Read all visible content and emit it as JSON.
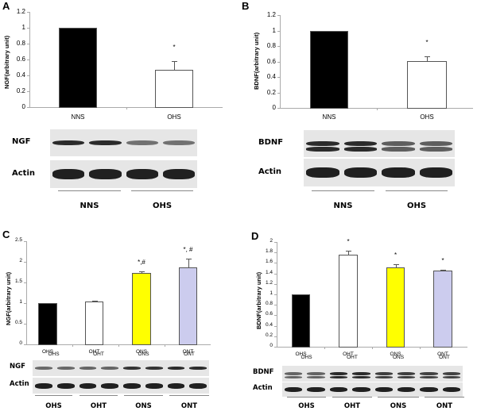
{
  "chart_data": [
    {
      "panel": "A",
      "type": "bar",
      "title": "",
      "xlabel": "",
      "ylabel": "NGF(arbitrary unit)",
      "ylim": [
        0,
        1.2
      ],
      "yticks": [
        "0",
        "0.2",
        "0.4",
        "0.6",
        "0.8",
        "1",
        "1.2"
      ],
      "categories": [
        "NNS",
        "OHS"
      ],
      "values": [
        1.0,
        0.47
      ],
      "errors": [
        0,
        0.11
      ],
      "colors": [
        "#000000",
        "#ffffff"
      ],
      "annotations": [
        "",
        "*"
      ],
      "grid": false,
      "blot": {
        "rows": [
          "NGF",
          "Actin"
        ],
        "groups": [
          "NNS",
          "OHS"
        ]
      }
    },
    {
      "panel": "B",
      "type": "bar",
      "title": "",
      "xlabel": "",
      "ylabel": "BDNF(arbitrary unit)",
      "ylim": [
        0,
        1.2
      ],
      "yticks": [
        "0",
        "0.2",
        "0.4",
        "0.6",
        "0.8",
        "1",
        "1.2"
      ],
      "categories": [
        "NNS",
        "OHS"
      ],
      "values": [
        1.0,
        0.61
      ],
      "errors": [
        0,
        0.06
      ],
      "colors": [
        "#000000",
        "#ffffff"
      ],
      "annotations": [
        "",
        "*"
      ],
      "grid": false,
      "blot": {
        "rows": [
          "BDNF",
          "Actin"
        ],
        "groups": [
          "NNS",
          "OHS"
        ]
      }
    },
    {
      "panel": "C",
      "type": "bar",
      "title": "",
      "xlabel": "",
      "ylabel": "NGF(arbitrary unit)",
      "ylim": [
        0,
        2.5
      ],
      "yticks": [
        "0",
        "0.5",
        "1",
        "1.5",
        "2",
        "2.5"
      ],
      "categories": [
        "OHS",
        "OHT",
        "ONS",
        "ONT"
      ],
      "values": [
        1.0,
        1.04,
        1.74,
        1.86
      ],
      "errors": [
        0,
        0.01,
        0.02,
        0.22
      ],
      "colors": [
        "#000000",
        "#ffffff",
        "#ffff00",
        "#ccccee"
      ],
      "annotations": [
        "",
        "",
        "*,#",
        "*, #"
      ],
      "grid": false,
      "blot": {
        "rows": [
          "NGF",
          "Actin"
        ],
        "groups": [
          "OHS",
          "OHT",
          "ONS",
          "ONT"
        ]
      }
    },
    {
      "panel": "D",
      "type": "bar",
      "title": "",
      "xlabel": "",
      "ylabel": "BDNF(arbitrary unit)",
      "ylim": [
        0,
        2
      ],
      "yticks": [
        "0",
        "0.2",
        "0.4",
        "0.6",
        "0.8",
        "1",
        "1.2",
        "1.4",
        "1.6",
        "1.8",
        "2"
      ],
      "categories": [
        "OHS",
        "OHT",
        "ONS",
        "ONT"
      ],
      "values": [
        1.0,
        1.76,
        1.51,
        1.46
      ],
      "errors": [
        0,
        0.07,
        0.06,
        0.01
      ],
      "colors": [
        "#000000",
        "#ffffff",
        "#ffff00",
        "#ccccee"
      ],
      "annotations": [
        "",
        "*",
        "*",
        "*"
      ],
      "grid": false,
      "blot": {
        "rows": [
          "BDNF",
          "Actin"
        ],
        "groups": [
          "OHS",
          "OHT",
          "ONS",
          "ONT"
        ]
      }
    }
  ],
  "panels": {
    "A": {
      "letter": "A",
      "ylabel": "NGF(arbitrary unit)",
      "blot_rows": [
        "NGF",
        "Actin"
      ],
      "groups": [
        "NNS",
        "OHS"
      ]
    },
    "B": {
      "letter": "B",
      "ylabel": "BDNF(arbitrary unit)",
      "blot_rows": [
        "BDNF",
        "Actin"
      ],
      "groups": [
        "NNS",
        "OHS"
      ]
    },
    "C": {
      "letter": "C",
      "ylabel": "NGF(arbitrary unit)",
      "blot_rows": [
        "NGF",
        "Actin"
      ],
      "groups": [
        "OHS",
        "OHT",
        "ONS",
        "ONT"
      ]
    },
    "D": {
      "letter": "D",
      "ylabel": "BDNF(arbitrary unit)",
      "blot_rows": [
        "BDNF",
        "Actin"
      ],
      "groups": [
        "OHS",
        "OHT",
        "ONS",
        "ONT"
      ]
    }
  }
}
